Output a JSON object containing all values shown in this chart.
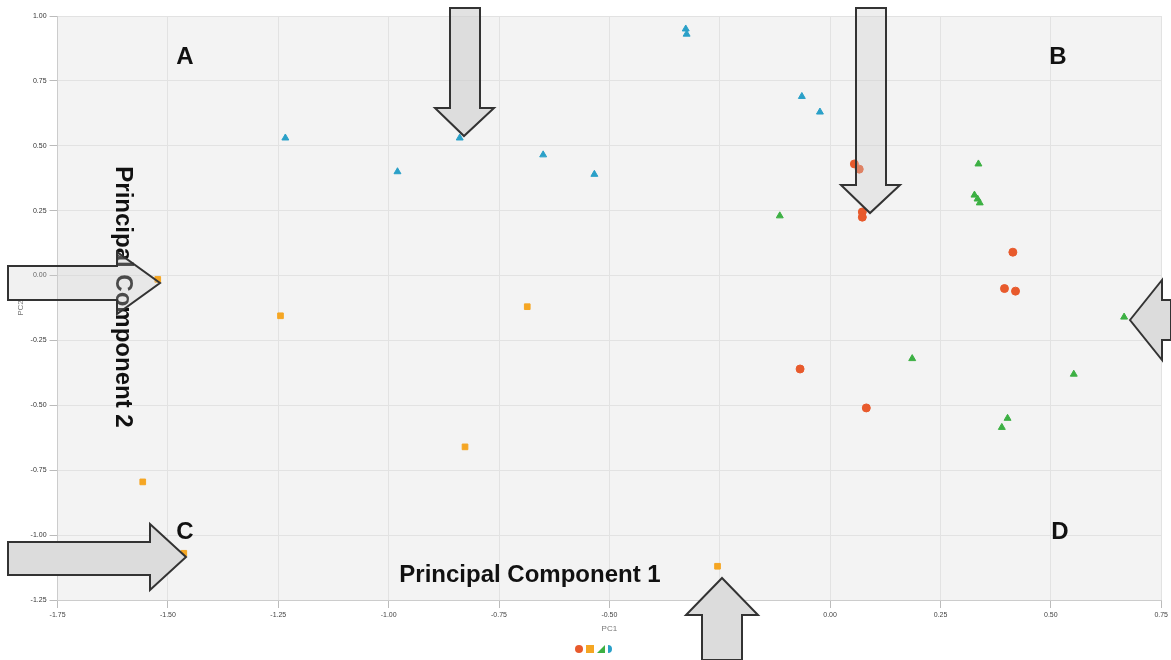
{
  "chart_data": {
    "type": "scatter",
    "xlabel": "PC1",
    "ylabel": "PC2",
    "annotations": [
      "A",
      "B",
      "C",
      "D",
      "Principal Component 1",
      "Principal Component 2"
    ],
    "xlim": [
      -1.75,
      0.75
    ],
    "xticks": [
      {
        "value": -1.75,
        "label": "-1.75"
      },
      {
        "value": -1.5,
        "label": "-1.50"
      },
      {
        "value": -1.25,
        "label": "-1.25"
      },
      {
        "value": -1,
        "label": "-1.00"
      },
      {
        "value": -0.75,
        "label": "-0.75"
      },
      {
        "value": -0.5,
        "label": "-0.50"
      },
      {
        "value": -0.25,
        "label": null
      },
      {
        "value": 0,
        "label": "0.00"
      },
      {
        "value": 0.25,
        "label": "0.25"
      },
      {
        "value": 0.5,
        "label": "0.50"
      },
      {
        "value": 0.75,
        "label": "0.75"
      }
    ],
    "ylim": [
      -1.25,
      1
    ],
    "yticks": [
      {
        "value": -1.25,
        "label": "-1.25"
      },
      {
        "value": -1,
        "label": "-1.00"
      },
      {
        "value": -0.75,
        "label": "-0.75"
      },
      {
        "value": -0.5,
        "label": "-0.50"
      },
      {
        "value": -0.25,
        "label": "-0.25"
      },
      {
        "value": 0,
        "label": "0.00"
      },
      {
        "value": 0.25,
        "label": "0.25"
      },
      {
        "value": 0.5,
        "label": "0.50"
      },
      {
        "value": 0.75,
        "label": "0.75"
      },
      {
        "value": 1,
        "label": "1.00"
      }
    ],
    "grid": true,
    "series": [
      {
        "color": "#e85a2c",
        "marker": "circle",
        "x": [
          0.055,
          0.066,
          0.073,
          0.073,
          0.414,
          0.395,
          0.42,
          -0.068,
          0.082
        ],
        "values": [
          0.43,
          0.41,
          0.245,
          0.225,
          0.09,
          -0.05,
          -0.06,
          -0.36,
          -0.51
        ]
      },
      {
        "color": "#f5a623",
        "marker": "square",
        "x": [
          -1.523,
          -1.245,
          -0.686,
          -0.827,
          -1.557,
          -1.464,
          -0.255
        ],
        "values": [
          -0.015,
          -0.155,
          -0.12,
          -0.66,
          -0.795,
          -1.07,
          -1.12
        ]
      },
      {
        "color": "#3cb043",
        "marker": "triangle",
        "x": [
          -0.114,
          0.336,
          0.327,
          0.334,
          0.339,
          0.186,
          0.552,
          0.666,
          0.402,
          0.389
        ],
        "values": [
          0.23,
          0.43,
          0.31,
          0.295,
          0.28,
          -0.32,
          -0.38,
          -0.16,
          -0.55,
          -0.585
        ]
      },
      {
        "color": "#2aa0c8",
        "marker": "triangle",
        "x": [
          -0.327,
          -0.325,
          -0.064,
          -0.023,
          -1.234,
          -0.839,
          -0.98,
          -0.65,
          -0.534
        ],
        "values": [
          0.95,
          0.93,
          0.69,
          0.63,
          0.53,
          0.53,
          0.4,
          0.465,
          0.39
        ]
      }
    ]
  }
}
